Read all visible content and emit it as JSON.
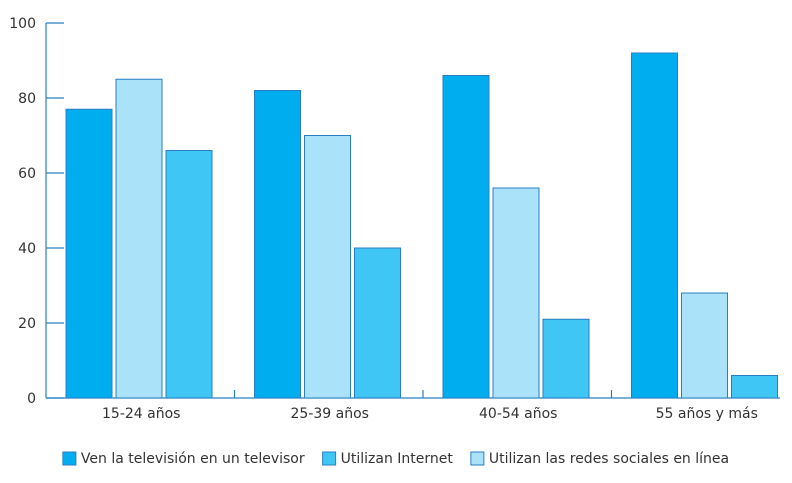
{
  "chart_data": {
    "type": "bar",
    "categories": [
      "15-24 años",
      "25-39 años",
      "40-54 años",
      "55 años y más"
    ],
    "series": [
      {
        "name": "Ven la televisión en un televisor",
        "values": [
          77,
          82,
          86,
          92
        ],
        "color": "#00aeef",
        "stroke": "#2b7fc1"
      },
      {
        "name": "Utilizan Internet",
        "values": [
          66,
          40,
          21,
          6
        ],
        "color": "#3fc6f4",
        "stroke": "#2b7fc1"
      },
      {
        "name": "Utilizan las redes sociales en línea",
        "values": [
          85,
          70,
          56,
          28
        ],
        "color": "#a9e2f9",
        "stroke": "#2b7fc1"
      }
    ],
    "bar_order": [
      0,
      2,
      1
    ],
    "legend_order": [
      0,
      1,
      2
    ],
    "yticks": [
      0,
      20,
      40,
      60,
      80,
      100
    ],
    "ylim": [
      0,
      100
    ],
    "axis_color": "#2b7fc1",
    "grid": false,
    "legend_position": "bottom-center"
  }
}
